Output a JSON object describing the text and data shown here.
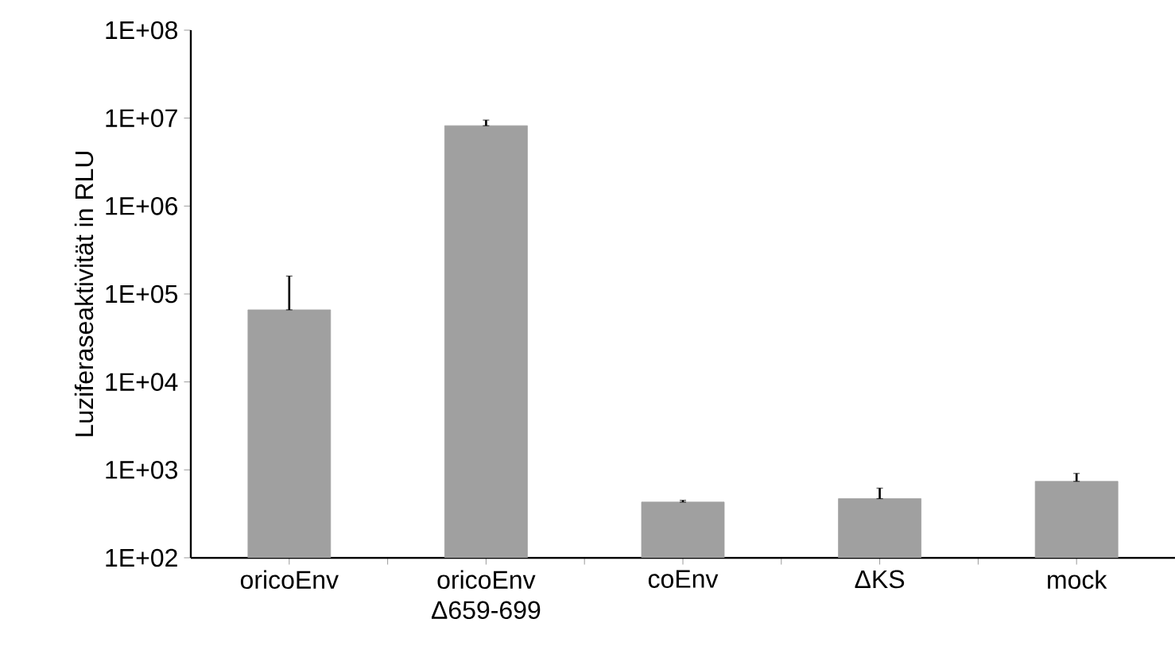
{
  "chart_data": {
    "type": "bar",
    "ylabel": "Luziferaseaktivität in RLU",
    "categories": [
      "oricoEnv",
      "oricoEnv Δ659-699",
      "coEnv",
      "ΔKS",
      "mock"
    ],
    "values": [
      66000,
      8200000,
      430,
      470,
      740
    ],
    "errors": [
      [
        66000,
        160000
      ],
      [
        8200000,
        9500000
      ],
      [
        430,
        450
      ],
      [
        470,
        620
      ],
      [
        740,
        910
      ]
    ],
    "color": "#a0a0a0",
    "log": "y",
    "grid": false,
    "ylim": [
      100,
      100000000
    ],
    "yticks": [
      {
        "value": 100,
        "label": "1E+02"
      },
      {
        "value": 1000,
        "label": "1E+03"
      },
      {
        "value": 10000,
        "label": "1E+04"
      },
      {
        "value": 100000,
        "label": "1E+05"
      },
      {
        "value": 1000000,
        "label": "1E+06"
      },
      {
        "value": 10000000,
        "label": "1E+07"
      },
      {
        "value": 100000000,
        "label": "1E+08"
      }
    ]
  }
}
